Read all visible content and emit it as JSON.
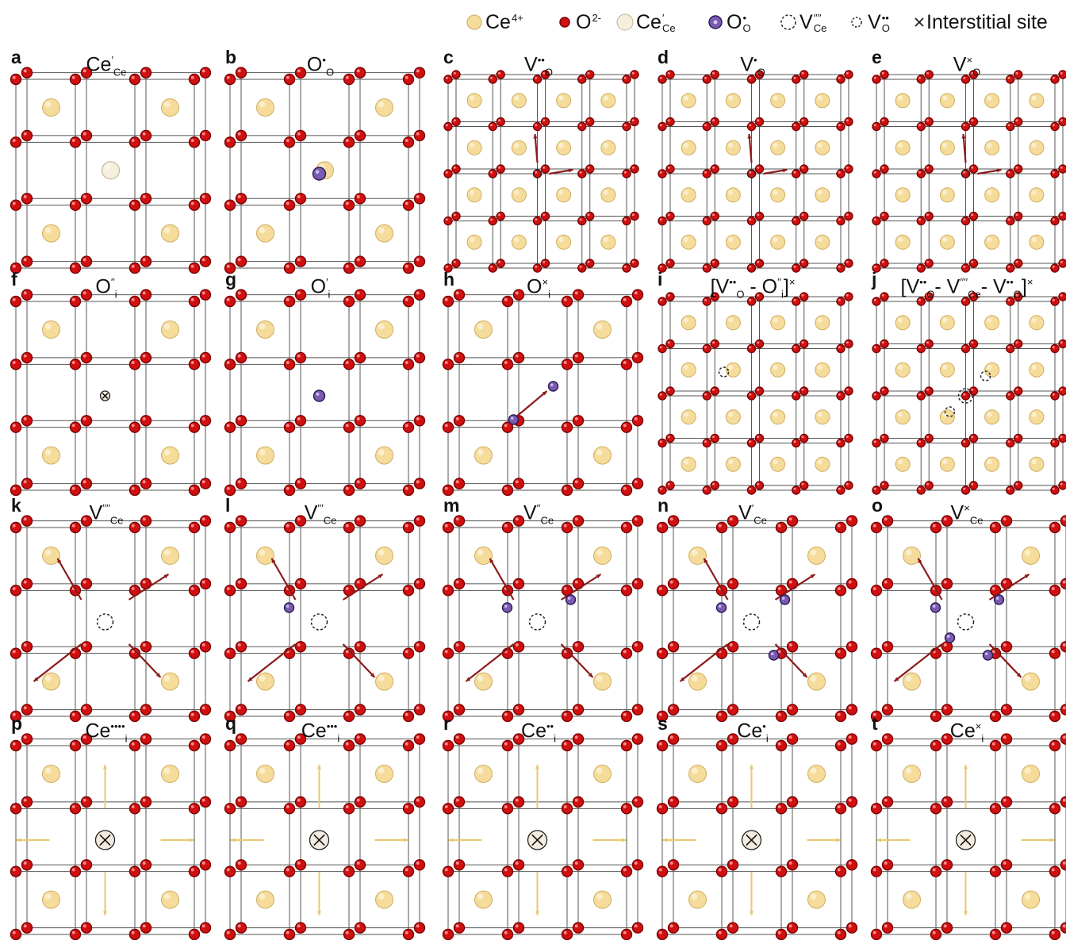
{
  "legend": [
    {
      "kind": "ce4",
      "main": "Ce",
      "sup": "4+",
      "sub": ""
    },
    {
      "kind": "o",
      "main": "O",
      "sup": "2-",
      "sub": ""
    },
    {
      "kind": "cece",
      "main": "Ce",
      "sup": "′",
      "sub": "Ce"
    },
    {
      "kind": "oo",
      "main": "O",
      "sup": "•",
      "sub": "O"
    },
    {
      "kind": "vce",
      "main": "V",
      "sup": "′′′′",
      "sub": "Ce"
    },
    {
      "kind": "vo",
      "main": "V",
      "sup": "••",
      "sub": "O"
    },
    {
      "kind": "x",
      "main": "Interstitial site",
      "sup": "",
      "sub": ""
    }
  ],
  "panels": [
    {
      "letter": "a",
      "title": [
        {
          "t": "Ce"
        },
        {
          "sup": "′"
        },
        {
          "sub": "Ce"
        }
      ]
    },
    {
      "letter": "b",
      "title": [
        {
          "t": "O"
        },
        {
          "sup": "•"
        },
        {
          "sub": "O"
        }
      ]
    },
    {
      "letter": "c",
      "title": [
        {
          "t": "V"
        },
        {
          "sup": "••"
        },
        {
          "sub": "O"
        }
      ]
    },
    {
      "letter": "d",
      "title": [
        {
          "t": "V"
        },
        {
          "sup": "•"
        },
        {
          "sub": "O"
        }
      ]
    },
    {
      "letter": "e",
      "title": [
        {
          "t": "V"
        },
        {
          "sup": "×"
        },
        {
          "sub": "O"
        }
      ]
    },
    {
      "letter": "f",
      "title": [
        {
          "t": "O"
        },
        {
          "sup": "′′"
        },
        {
          "sub": "i"
        }
      ]
    },
    {
      "letter": "g",
      "title": [
        {
          "t": "O"
        },
        {
          "sup": "′"
        },
        {
          "sub": "i"
        }
      ]
    },
    {
      "letter": "h",
      "title": [
        {
          "t": "O"
        },
        {
          "sup": "×"
        },
        {
          "sub": "i"
        }
      ]
    },
    {
      "letter": "i",
      "title": [
        {
          "t": "[V"
        },
        {
          "sup": "••"
        },
        {
          "sub": "O"
        },
        {
          "t": " - O"
        },
        {
          "sup": "′′"
        },
        {
          "sub": "i"
        },
        {
          "t": "]"
        },
        {
          "sup": "×"
        }
      ]
    },
    {
      "letter": "j",
      "title": [
        {
          "t": "[V"
        },
        {
          "sup": "••"
        },
        {
          "sub": "O"
        },
        {
          "t": "- V"
        },
        {
          "sup": "′′′′"
        },
        {
          "sub": "Ce"
        },
        {
          "t": "- V"
        },
        {
          "sup": "••"
        },
        {
          "sub": "O"
        },
        {
          "t": "]"
        },
        {
          "sup": "×"
        }
      ]
    },
    {
      "letter": "k",
      "title": [
        {
          "t": "V"
        },
        {
          "sup": "′′′′"
        },
        {
          "sub": "Ce"
        }
      ]
    },
    {
      "letter": "l",
      "title": [
        {
          "t": "V"
        },
        {
          "sup": "′′′"
        },
        {
          "sub": "Ce"
        }
      ]
    },
    {
      "letter": "m",
      "title": [
        {
          "t": "V"
        },
        {
          "sup": "′′"
        },
        {
          "sub": "Ce"
        }
      ]
    },
    {
      "letter": "n",
      "title": [
        {
          "t": "V"
        },
        {
          "sup": "′"
        },
        {
          "sub": "Ce"
        }
      ]
    },
    {
      "letter": "o",
      "title": [
        {
          "t": "V"
        },
        {
          "sup": "×"
        },
        {
          "sub": "Ce"
        }
      ]
    },
    {
      "letter": "p",
      "title": [
        {
          "t": "Ce"
        },
        {
          "sup": "••••"
        },
        {
          "sub": "i"
        }
      ]
    },
    {
      "letter": "q",
      "title": [
        {
          "t": "Ce"
        },
        {
          "sup": "•••"
        },
        {
          "sub": "i"
        }
      ]
    },
    {
      "letter": "r",
      "title": [
        {
          "t": "Ce"
        },
        {
          "sup": "••"
        },
        {
          "sub": "i"
        }
      ]
    },
    {
      "letter": "s",
      "title": [
        {
          "t": "Ce"
        },
        {
          "sup": "•"
        },
        {
          "sub": "i"
        }
      ]
    },
    {
      "letter": "t",
      "title": [
        {
          "t": "Ce"
        },
        {
          "sup": "×"
        },
        {
          "sub": "i"
        }
      ]
    }
  ],
  "colors": {
    "oxygen": "#d01010",
    "oxygen_dark": "#7a0000",
    "ce4": "#f6dc9a",
    "ce_reduced": "#f6efdc",
    "o_hole": "#7a5bb0",
    "arrow": "#8b1a1a",
    "ce_arrow": "#e8c870",
    "bond": "#555555"
  }
}
